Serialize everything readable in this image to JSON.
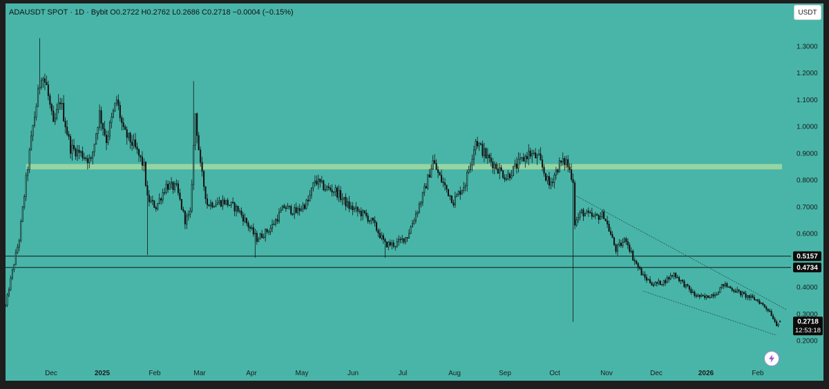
{
  "header": {
    "symbol": "ADAUSDT SPOT",
    "interval": "1D",
    "exchange": "Bybit",
    "ohlc_text": "O0.2722  H0.2762  L0.2686  C0.2718  −0.0004 (−0.15%)"
  },
  "currency_button": "USDT",
  "colors": {
    "background": "#48b5a8",
    "frame": "#1e1e1e",
    "candle": "#111111",
    "zone": "#a6d9a0",
    "line": "#111111",
    "tag_bg": "#0b0b0b",
    "bolt": "#9b59d0"
  },
  "icons": {
    "bolt": "lightning-bolt-icon"
  },
  "chart_data": {
    "type": "candlestick",
    "y_axis": {
      "ticks": [
        "1.3000",
        "1.2000",
        "1.1000",
        "1.0000",
        "0.9000",
        "0.8000",
        "0.7000",
        "0.6000",
        "0.4000",
        "0.3000",
        "0.2000"
      ],
      "ylim": [
        0.17,
        1.4
      ]
    },
    "x_axis": {
      "labels": [
        "Dec",
        "2025",
        "Feb",
        "Mar",
        "Apr",
        "May",
        "Jun",
        "Jul",
        "Aug",
        "Sep",
        "Oct",
        "Nov",
        "Dec",
        "2026",
        "Feb"
      ],
      "bold": [
        "2025",
        "2026"
      ],
      "range": [
        "2024-11-12",
        "2026-02-10"
      ]
    },
    "horizontal_lines": [
      {
        "value": 0.5157,
        "label": "0.5157"
      },
      {
        "value": 0.4734,
        "label": "0.4734"
      }
    ],
    "zone": {
      "from": 0.84,
      "to": 0.86,
      "start": "2024-11-20",
      "end": "2026-02-10"
    },
    "trendlines": [
      {
        "from": [
          "2025-10-12",
          0.74
        ],
        "to": [
          "2026-02-12",
          0.315
        ]
      },
      {
        "from": [
          "2025-11-20",
          0.385
        ],
        "to": [
          "2026-02-06",
          0.22
        ]
      }
    ],
    "last_price": {
      "value": 0.2718,
      "label": "0.2718",
      "countdown": "12:53:18"
    },
    "anchors": [
      [
        "2024-11-12",
        0.33
      ],
      [
        "2024-11-16",
        0.46
      ],
      [
        "2024-11-20",
        0.58
      ],
      [
        "2024-11-24",
        0.8
      ],
      [
        "2024-11-28",
        1.0
      ],
      [
        "2024-12-03",
        1.2
      ],
      [
        "2024-12-06",
        1.15
      ],
      [
        "2024-12-10",
        1.0
      ],
      [
        "2024-12-14",
        1.1
      ],
      [
        "2024-12-20",
        0.92
      ],
      [
        "2024-12-26",
        0.9
      ],
      [
        "2025-01-01",
        0.87
      ],
      [
        "2025-01-06",
        1.05
      ],
      [
        "2025-01-10",
        0.95
      ],
      [
        "2025-01-16",
        1.1
      ],
      [
        "2025-01-20",
        0.98
      ],
      [
        "2025-01-26",
        0.93
      ],
      [
        "2025-02-01",
        0.85
      ],
      [
        "2025-02-03",
        0.73
      ],
      [
        "2025-02-08",
        0.7
      ],
      [
        "2025-02-14",
        0.78
      ],
      [
        "2025-02-20",
        0.77
      ],
      [
        "2025-02-25",
        0.65
      ],
      [
        "2025-02-28",
        0.67
      ],
      [
        "2025-03-03",
        1.05
      ],
      [
        "2025-03-06",
        0.85
      ],
      [
        "2025-03-10",
        0.71
      ],
      [
        "2025-03-20",
        0.72
      ],
      [
        "2025-03-28",
        0.69
      ],
      [
        "2025-04-03",
        0.63
      ],
      [
        "2025-04-08",
        0.58
      ],
      [
        "2025-04-16",
        0.62
      ],
      [
        "2025-04-24",
        0.7
      ],
      [
        "2025-05-01",
        0.68
      ],
      [
        "2025-05-08",
        0.72
      ],
      [
        "2025-05-12",
        0.8
      ],
      [
        "2025-05-18",
        0.77
      ],
      [
        "2025-05-24",
        0.76
      ],
      [
        "2025-06-01",
        0.7
      ],
      [
        "2025-06-10",
        0.67
      ],
      [
        "2025-06-15",
        0.64
      ],
      [
        "2025-06-22",
        0.56
      ],
      [
        "2025-06-28",
        0.56
      ],
      [
        "2025-07-05",
        0.59
      ],
      [
        "2025-07-14",
        0.74
      ],
      [
        "2025-07-20",
        0.87
      ],
      [
        "2025-07-24",
        0.81
      ],
      [
        "2025-08-01",
        0.72
      ],
      [
        "2025-08-08",
        0.79
      ],
      [
        "2025-08-14",
        0.95
      ],
      [
        "2025-08-20",
        0.89
      ],
      [
        "2025-08-26",
        0.85
      ],
      [
        "2025-09-01",
        0.81
      ],
      [
        "2025-09-08",
        0.86
      ],
      [
        "2025-09-14",
        0.9
      ],
      [
        "2025-09-20",
        0.88
      ],
      [
        "2025-09-26",
        0.78
      ],
      [
        "2025-10-02",
        0.86
      ],
      [
        "2025-10-06",
        0.87
      ],
      [
        "2025-10-10",
        0.8
      ],
      [
        "2025-10-11",
        0.64
      ],
      [
        "2025-10-15",
        0.68
      ],
      [
        "2025-10-22",
        0.66
      ],
      [
        "2025-10-28",
        0.67
      ],
      [
        "2025-11-04",
        0.54
      ],
      [
        "2025-11-10",
        0.58
      ],
      [
        "2025-11-14",
        0.51
      ],
      [
        "2025-11-20",
        0.44
      ],
      [
        "2025-11-26",
        0.41
      ],
      [
        "2025-12-02",
        0.42
      ],
      [
        "2025-12-08",
        0.45
      ],
      [
        "2025-12-14",
        0.41
      ],
      [
        "2025-12-20",
        0.37
      ],
      [
        "2025-12-26",
        0.36
      ],
      [
        "2026-01-02",
        0.38
      ],
      [
        "2026-01-06",
        0.41
      ],
      [
        "2026-01-12",
        0.39
      ],
      [
        "2026-01-18",
        0.37
      ],
      [
        "2026-01-26",
        0.35
      ],
      [
        "2026-02-02",
        0.31
      ],
      [
        "2026-02-06",
        0.26
      ],
      [
        "2026-02-08",
        0.2718
      ]
    ],
    "spikes": [
      {
        "date": "2024-12-02",
        "high": 1.33
      },
      {
        "date": "2025-03-02",
        "high": 1.17
      },
      {
        "date": "2025-10-10",
        "low": 0.27
      },
      {
        "date": "2025-02-03",
        "low": 0.52
      },
      {
        "date": "2025-04-07",
        "low": 0.51
      },
      {
        "date": "2025-06-22",
        "low": 0.51
      }
    ]
  }
}
